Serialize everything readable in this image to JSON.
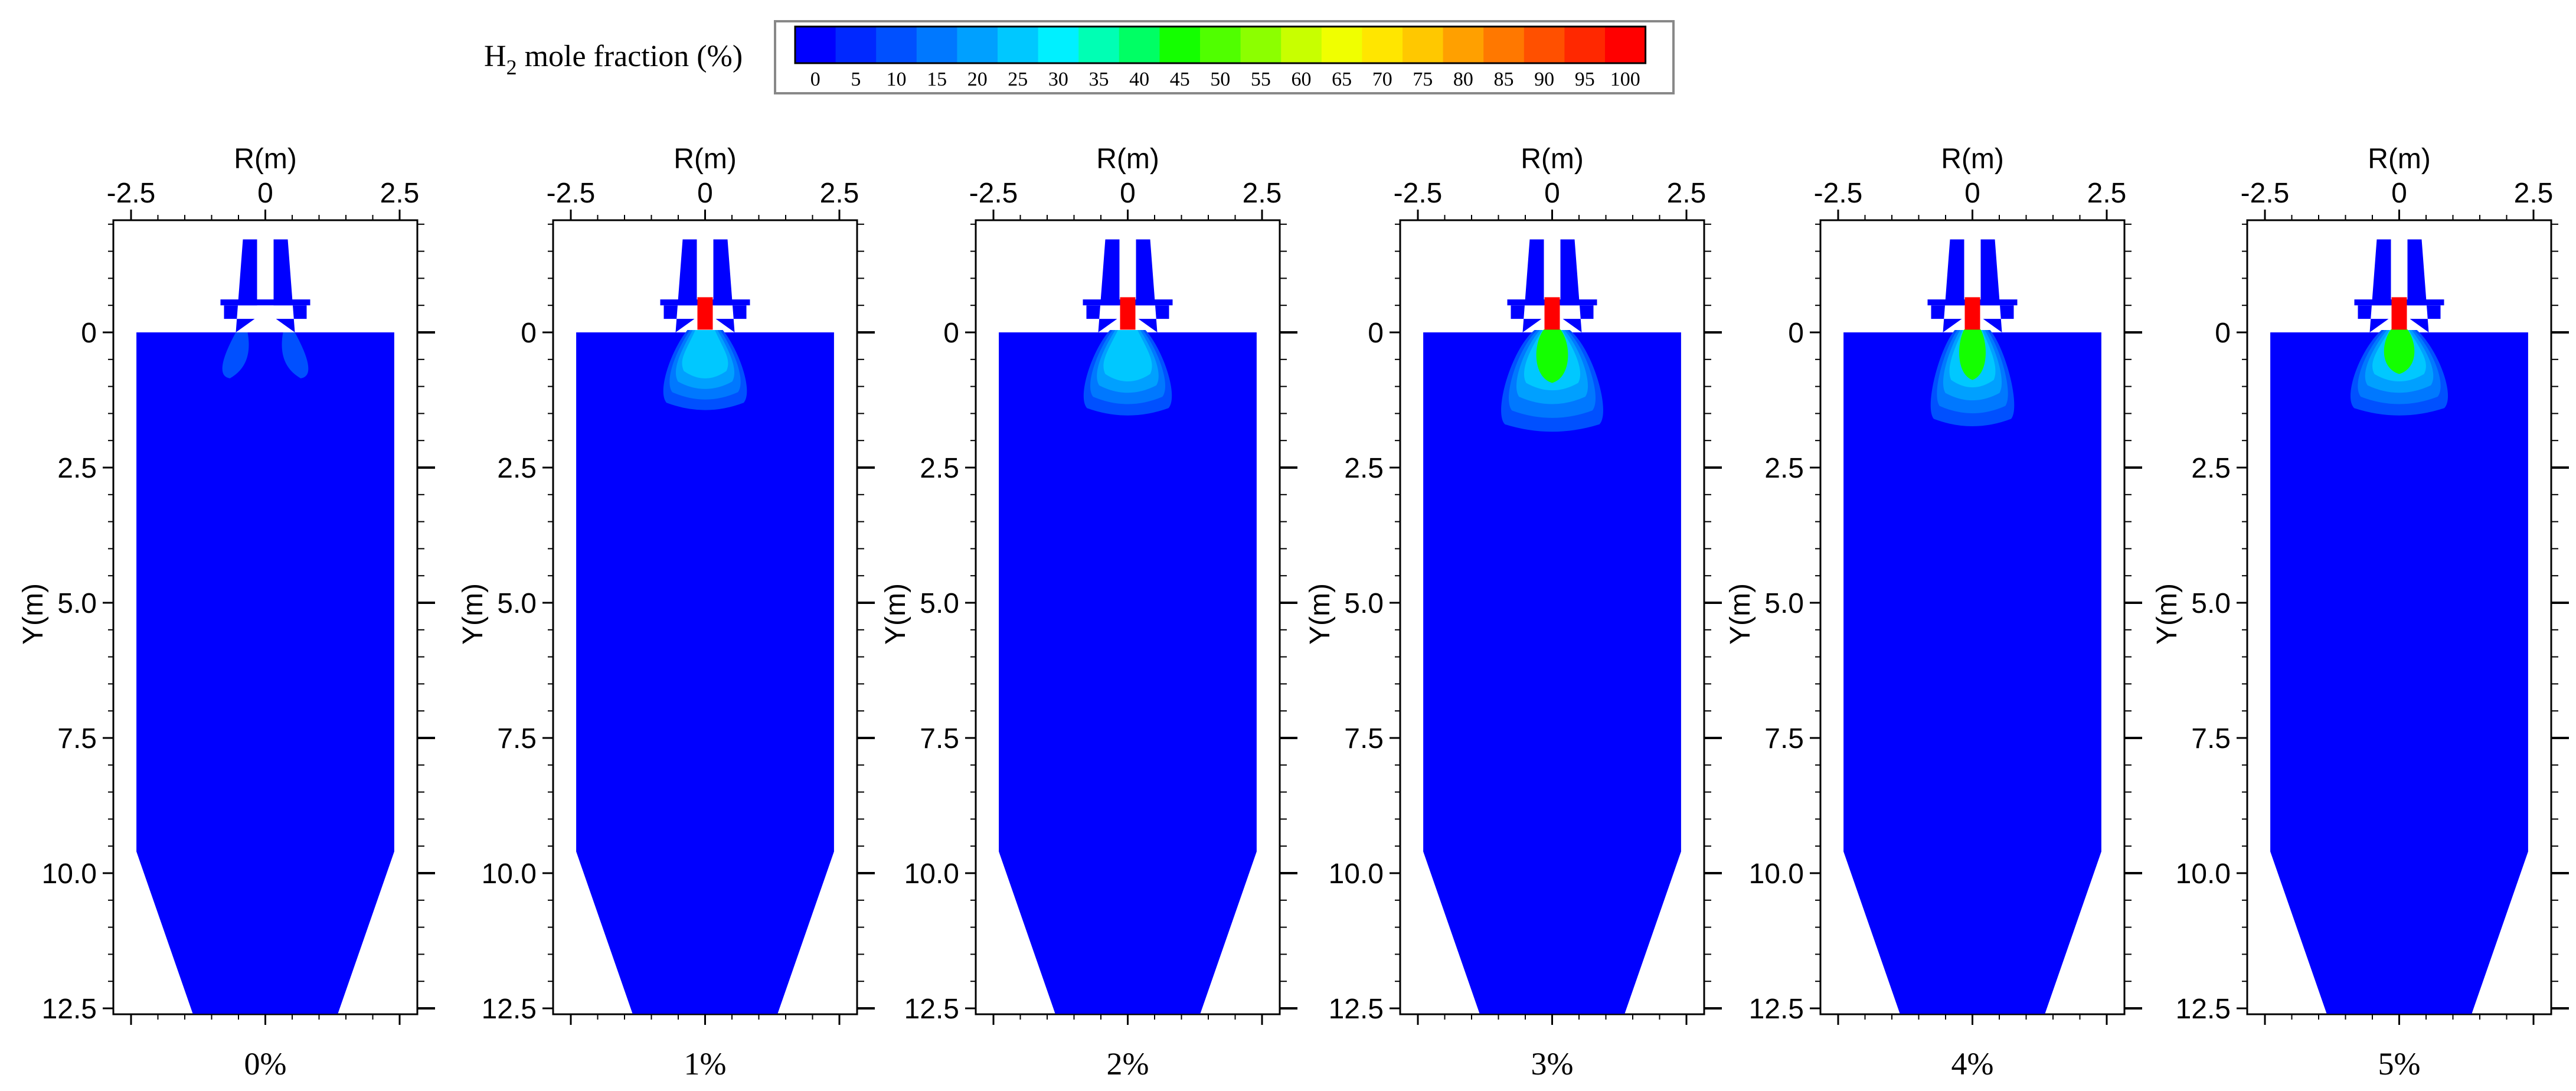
{
  "legend": {
    "title_main": "H",
    "title_sub": "2",
    "title_rest": " mole fraction (%)",
    "levels": [
      0,
      5,
      10,
      15,
      20,
      25,
      30,
      35,
      40,
      45,
      50,
      55,
      60,
      65,
      70,
      75,
      80,
      85,
      90,
      95,
      100
    ],
    "colors": [
      "#0000ff",
      "#0028ff",
      "#0050ff",
      "#0078ff",
      "#00a0ff",
      "#00c8ff",
      "#00f0ff",
      "#00ffb4",
      "#00ff64",
      "#14ff00",
      "#50ff00",
      "#8cff00",
      "#c8ff00",
      "#f0ff00",
      "#ffe600",
      "#ffc800",
      "#ffa000",
      "#ff7800",
      "#ff5000",
      "#ff2800",
      "#ff0000"
    ]
  },
  "chart_data": {
    "type": "heatmap",
    "x_axis": {
      "label": "R(m)",
      "range": [
        -2.5,
        2.5
      ],
      "ticks": [
        -2.5,
        0,
        2.5
      ],
      "tick_labels": [
        "-2.5",
        "0",
        "2.5"
      ]
    },
    "y_axis": {
      "label": "Y(m)",
      "range": [
        12.5,
        -2.0
      ],
      "inverted": true,
      "ticks": [
        0,
        2.5,
        5.0,
        7.5,
        10.0,
        12.5
      ],
      "tick_labels": [
        "0",
        "2.5",
        "5.0",
        "7.5",
        "10.0",
        "12.5"
      ]
    },
    "panels": [
      {
        "label": "0%",
        "plume_length_m": 0.9,
        "plume_width_m": 0.9,
        "peak_fraction_pct": 20,
        "green_core": false
      },
      {
        "label": "1%",
        "plume_length_m": 1.3,
        "plume_width_m": 1.8,
        "peak_fraction_pct": 100,
        "green_core": false
      },
      {
        "label": "2%",
        "plume_length_m": 1.4,
        "plume_width_m": 1.9,
        "peak_fraction_pct": 100,
        "green_core": false
      },
      {
        "label": "3%",
        "plume_length_m": 1.7,
        "plume_width_m": 2.2,
        "peak_fraction_pct": 100,
        "green_core": true
      },
      {
        "label": "4%",
        "plume_length_m": 1.6,
        "plume_width_m": 1.8,
        "peak_fraction_pct": 100,
        "green_core": true
      },
      {
        "label": "5%",
        "plume_length_m": 1.4,
        "plume_width_m": 2.1,
        "peak_fraction_pct": 100,
        "green_core": true
      }
    ]
  }
}
